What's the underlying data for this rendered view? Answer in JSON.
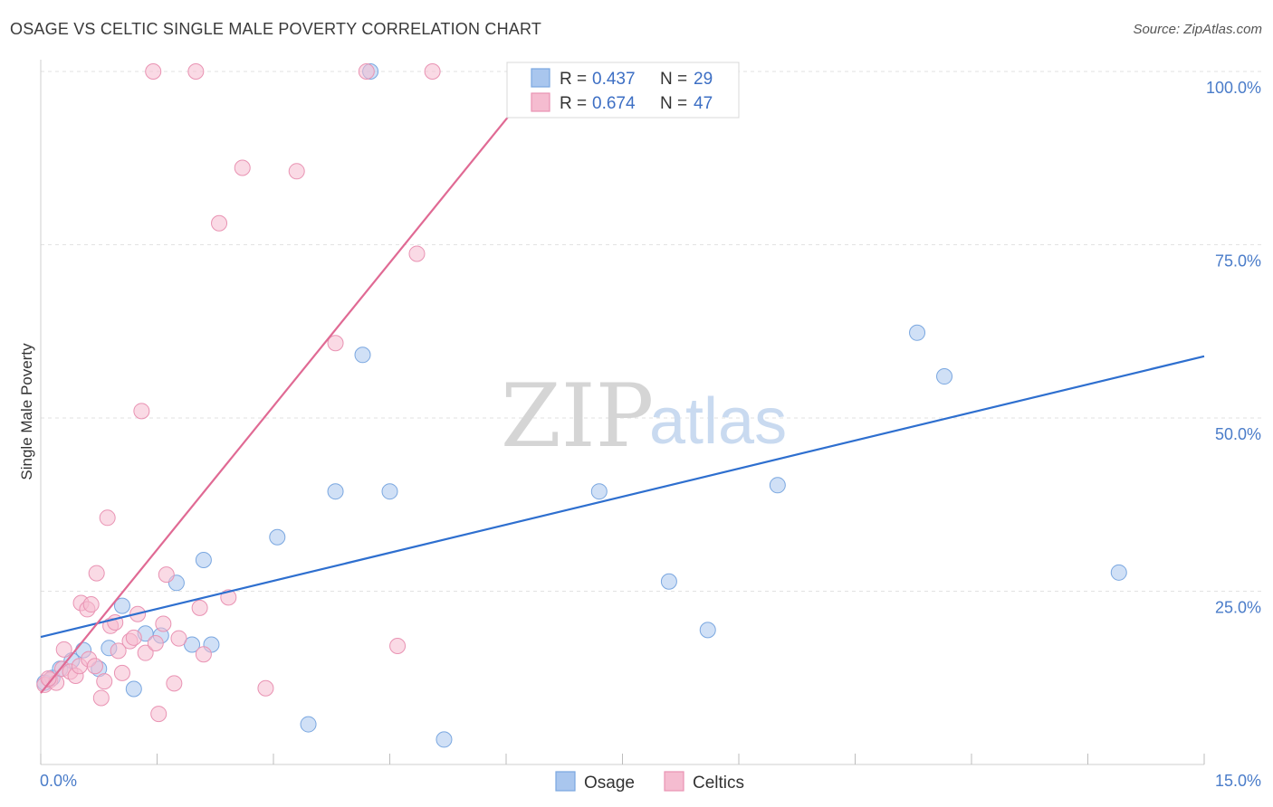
{
  "title": "OSAGE VS CELTIC SINGLE MALE POVERTY CORRELATION CHART",
  "source": "Source: ZipAtlas.com",
  "watermark": {
    "zip": "ZIP",
    "atlas": "atlas"
  },
  "chart_data": {
    "type": "scatter",
    "title": "OSAGE VS CELTIC SINGLE MALE POVERTY CORRELATION CHART",
    "xlabel": "",
    "ylabel": "Single Male Poverty",
    "xlim": [
      0,
      15
    ],
    "ylim": [
      0,
      100
    ],
    "x_tick_labels": [
      "0.0%",
      "15.0%"
    ],
    "y_tick_labels": [
      "25.0%",
      "50.0%",
      "75.0%",
      "100.0%"
    ],
    "y_tick_values": [
      25,
      50,
      75,
      100
    ],
    "grid": true,
    "legend": {
      "position": "top-center",
      "entries": [
        {
          "series": "Osage",
          "r_label": "R =",
          "r_value": "0.437",
          "n_label": "N =",
          "n_value": "29"
        },
        {
          "series": "Celtics",
          "r_label": "R =",
          "r_value": "0.674",
          "n_label": "N =",
          "n_value": "47"
        }
      ]
    },
    "series": [
      {
        "name": "Osage",
        "color": "#7aa7e0",
        "fill": "#a9c6ee",
        "line_color": "#2e6fcf",
        "trend": {
          "x": [
            0,
            15
          ],
          "y": [
            18.4,
            58.9
          ]
        },
        "points": [
          [
            0.05,
            11.8
          ],
          [
            0.15,
            12.5
          ],
          [
            0.25,
            13.8
          ],
          [
            0.4,
            15.0
          ],
          [
            0.55,
            16.5
          ],
          [
            0.75,
            13.8
          ],
          [
            0.88,
            16.8
          ],
          [
            1.05,
            22.9
          ],
          [
            1.2,
            10.9
          ],
          [
            1.35,
            18.9
          ],
          [
            1.55,
            18.6
          ],
          [
            1.75,
            26.2
          ],
          [
            1.95,
            17.3
          ],
          [
            2.1,
            29.5
          ],
          [
            2.2,
            17.3
          ],
          [
            3.05,
            32.8
          ],
          [
            3.45,
            5.8
          ],
          [
            3.8,
            39.4
          ],
          [
            4.15,
            59.1
          ],
          [
            4.5,
            39.4
          ],
          [
            5.2,
            3.6
          ],
          [
            7.2,
            39.4
          ],
          [
            8.1,
            26.4
          ],
          [
            8.6,
            19.4
          ],
          [
            9.5,
            40.3
          ],
          [
            11.3,
            62.3
          ],
          [
            11.65,
            56.0
          ],
          [
            13.9,
            27.7
          ],
          [
            4.25,
            100.0
          ]
        ]
      },
      {
        "name": "Celtics",
        "color": "#e993b3",
        "fill": "#f5bcd0",
        "line_color": "#e06a94",
        "trend": {
          "x": [
            0,
            6.5
          ],
          "y": [
            10.3,
            100.0
          ]
        },
        "points": [
          [
            0.05,
            11.5
          ],
          [
            0.12,
            12.2
          ],
          [
            0.2,
            11.8
          ],
          [
            0.28,
            13.8
          ],
          [
            0.3,
            16.6
          ],
          [
            0.38,
            13.4
          ],
          [
            0.45,
            12.8
          ],
          [
            0.5,
            14.2
          ],
          [
            0.52,
            23.3
          ],
          [
            0.6,
            22.4
          ],
          [
            0.65,
            23.1
          ],
          [
            0.62,
            15.2
          ],
          [
            0.7,
            14.2
          ],
          [
            0.72,
            27.6
          ],
          [
            0.78,
            9.6
          ],
          [
            0.82,
            12.0
          ],
          [
            0.86,
            35.6
          ],
          [
            0.9,
            20.0
          ],
          [
            0.96,
            20.5
          ],
          [
            1.0,
            16.4
          ],
          [
            1.05,
            13.2
          ],
          [
            1.15,
            17.8
          ],
          [
            1.2,
            18.3
          ],
          [
            1.25,
            21.7
          ],
          [
            1.3,
            51.0
          ],
          [
            1.35,
            16.1
          ],
          [
            1.48,
            17.5
          ],
          [
            1.52,
            7.3
          ],
          [
            1.58,
            20.3
          ],
          [
            1.62,
            27.4
          ],
          [
            1.72,
            11.7
          ],
          [
            1.78,
            18.2
          ],
          [
            2.05,
            22.6
          ],
          [
            2.1,
            15.9
          ],
          [
            2.42,
            24.1
          ],
          [
            2.3,
            78.1
          ],
          [
            2.6,
            86.1
          ],
          [
            2.9,
            11.0
          ],
          [
            3.3,
            85.6
          ],
          [
            3.8,
            60.8
          ],
          [
            4.6,
            17.1
          ],
          [
            4.85,
            73.7
          ],
          [
            1.45,
            100.0
          ],
          [
            2.0,
            100.0
          ],
          [
            4.2,
            100.0
          ],
          [
            5.05,
            100.0
          ],
          [
            0.1,
            12.4
          ]
        ]
      }
    ]
  },
  "bottom_legend": [
    {
      "label": "Osage"
    },
    {
      "label": "Celtics"
    }
  ]
}
